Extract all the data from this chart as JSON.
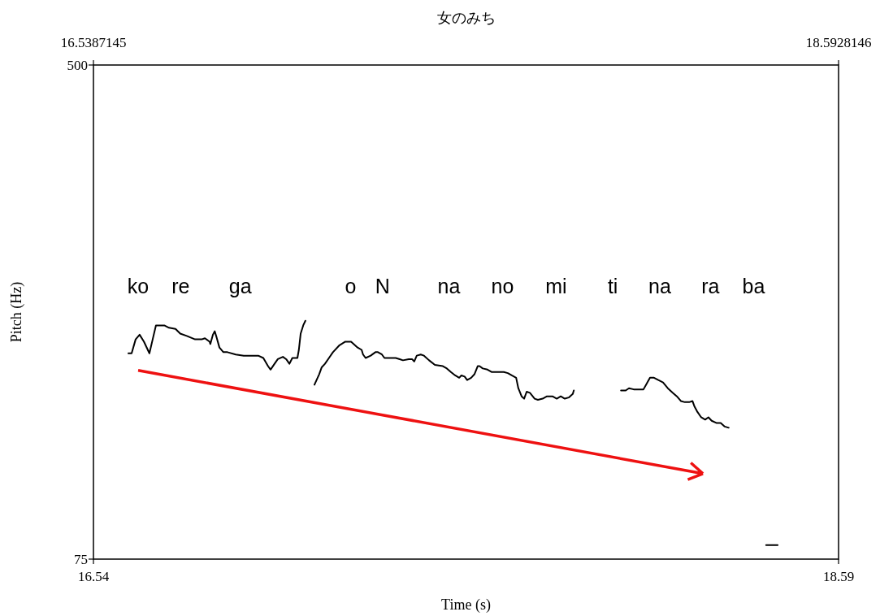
{
  "chart_data": {
    "type": "line",
    "title": "女のみち",
    "xlabel": "Time (s)",
    "ylabel": "Pitch (Hz)",
    "xlim": [
      16.5387145,
      18.5928146
    ],
    "xticks": [
      {
        "value": 16.5387145,
        "label": "16.54"
      },
      {
        "value": 18.5928146,
        "label": "18.59"
      }
    ],
    "x2lim": [
      16.5387145,
      18.5928146
    ],
    "x2ticks": [
      16.5387145,
      18.5928146
    ],
    "ylim": [
      75,
      500
    ],
    "yticks": [
      75,
      500
    ],
    "grid": false,
    "marker": "none",
    "line_style": "solid",
    "series": [
      {
        "color": "#000000",
        "x": [
          16.635,
          16.644,
          16.655,
          16.666,
          16.678,
          16.693,
          16.702,
          16.711,
          16.734,
          16.747,
          16.765,
          16.778,
          16.796,
          16.819,
          16.837,
          16.846,
          16.859,
          16.861,
          16.868,
          16.873,
          16.877,
          16.886,
          16.897,
          16.908,
          16.931,
          16.953,
          16.976,
          16.993,
          17.007,
          17.02,
          17.027,
          17.038,
          17.047,
          17.061,
          17.07,
          17.079,
          17.087,
          17.101,
          17.105,
          17.11,
          17.117,
          17.123
        ],
        "values": [
          252,
          252,
          264,
          268,
          262,
          252,
          264,
          276,
          276,
          274,
          273,
          269,
          267,
          264,
          264,
          265,
          262,
          260,
          268,
          271,
          267,
          257,
          253,
          253,
          251,
          250,
          250,
          250,
          248,
          241,
          238,
          243,
          247,
          249,
          247,
          243,
          248,
          248,
          255,
          269,
          276,
          280
        ]
      },
      {
        "color": "#000000",
        "x": [
          17.148,
          17.161,
          17.168,
          17.177,
          17.188,
          17.199,
          17.217,
          17.233,
          17.249,
          17.267,
          17.278,
          17.282,
          17.289,
          17.303,
          17.316,
          17.323,
          17.334,
          17.341,
          17.356,
          17.372,
          17.383,
          17.392,
          17.408,
          17.417,
          17.423,
          17.43,
          17.441,
          17.45,
          17.464,
          17.48,
          17.502,
          17.513,
          17.524,
          17.536,
          17.547,
          17.553,
          17.562,
          17.569,
          17.58,
          17.589,
          17.598,
          17.603,
          17.612,
          17.625,
          17.636,
          17.648,
          17.659,
          17.67,
          17.681,
          17.692,
          17.704,
          17.71,
          17.719,
          17.726,
          17.733,
          17.742,
          17.755,
          17.764,
          17.777,
          17.789,
          17.804,
          17.816,
          17.827,
          17.838,
          17.849,
          17.86,
          17.863
        ],
        "values": [
          225,
          234,
          240,
          243,
          248,
          253,
          259,
          262,
          262,
          257,
          255,
          251,
          248,
          250,
          253,
          253,
          251,
          248,
          248,
          248,
          247,
          246,
          247,
          247,
          245,
          250,
          251,
          250,
          246,
          242,
          241,
          239,
          236,
          233,
          231,
          233,
          232,
          229,
          231,
          234,
          241,
          241,
          239,
          238,
          236,
          236,
          236,
          236,
          235,
          233,
          231,
          222,
          215,
          213,
          219,
          218,
          213,
          212,
          213,
          215,
          215,
          213,
          215,
          213,
          214,
          217,
          220
        ]
      },
      {
        "color": "#000000",
        "x": [
          17.993,
          18.006,
          18.015,
          18.028,
          18.055,
          18.064,
          18.073,
          18.084,
          18.096,
          18.109,
          18.122,
          18.136,
          18.147,
          18.158,
          18.169,
          18.181,
          18.19,
          18.196,
          18.203,
          18.214,
          18.225,
          18.234,
          18.243,
          18.257,
          18.268,
          18.279,
          18.29
        ],
        "values": [
          220,
          220,
          222,
          221,
          221,
          226,
          231,
          231,
          229,
          227,
          222,
          218,
          215,
          211,
          210,
          210,
          211,
          206,
          202,
          197,
          195,
          197,
          194,
          192,
          192,
          189,
          188
        ]
      },
      {
        "color": "#000000",
        "x": [
          18.393,
          18.425
        ],
        "values": [
          87,
          87
        ]
      }
    ],
    "annotations": [
      "ko",
      "re",
      "ga",
      "o",
      "N",
      "na",
      "no",
      "mi",
      "ti",
      "na",
      "ra",
      "ba"
    ]
  }
}
